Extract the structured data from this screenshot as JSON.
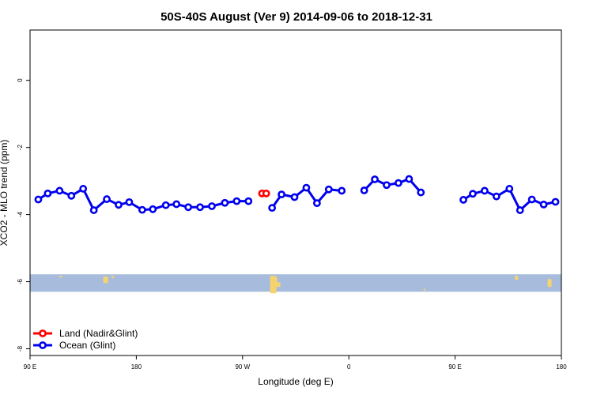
{
  "chart_data": {
    "type": "line",
    "title": "50S-40S August (Ver 9)   2014-09-06 to 2018-12-31",
    "xlabel": "Longitude (deg E)",
    "ylabel": "XCO2 - MLO trend (ppm)",
    "xlim": [
      90,
      540
    ],
    "ylim": [
      -8.2,
      1.5
    ],
    "x_ticks": [
      {
        "value": 90,
        "label": "90 E"
      },
      {
        "value": 180,
        "label": "180"
      },
      {
        "value": 270,
        "label": "90 W"
      },
      {
        "value": 360,
        "label": "0"
      },
      {
        "value": 450,
        "label": "90 E"
      },
      {
        "value": 540,
        "label": "180"
      }
    ],
    "y_ticks": [
      {
        "value": 0,
        "label": "0"
      },
      {
        "value": -2,
        "label": "-2"
      },
      {
        "value": -4,
        "label": "-4"
      },
      {
        "value": -6,
        "label": "-6"
      },
      {
        "value": -8,
        "label": "-8"
      }
    ],
    "grid": false,
    "legend_position": "bottom-left",
    "map_band": {
      "y_top": -5.78,
      "y_bottom": -6.3,
      "ocean_color": "#a7bcdd",
      "land_color": "#f5d36e"
    },
    "series": [
      {
        "name": "Land (Nadir&Glint)",
        "color": "#ff0000",
        "segments": [
          [
            [
              286.5,
              -3.37
            ],
            [
              290,
              -3.37
            ]
          ]
        ]
      },
      {
        "name": "Ocean (Glint)",
        "color": "#0000ee",
        "segments": [
          [
            [
              97,
              -3.55
            ],
            [
              105,
              -3.37
            ],
            [
              115,
              -3.29
            ],
            [
              125,
              -3.44
            ],
            [
              135,
              -3.23
            ],
            [
              144,
              -3.87
            ],
            [
              155,
              -3.54
            ],
            [
              165,
              -3.71
            ],
            [
              174,
              -3.63
            ],
            [
              185,
              -3.86
            ],
            [
              194,
              -3.84
            ],
            [
              205,
              -3.72
            ],
            [
              214,
              -3.69
            ],
            [
              224,
              -3.78
            ],
            [
              234,
              -3.78
            ],
            [
              244,
              -3.75
            ],
            [
              255,
              -3.65
            ],
            [
              265,
              -3.6
            ],
            [
              275,
              -3.6
            ]
          ],
          [
            [
              295,
              -3.8
            ],
            [
              303,
              -3.4
            ],
            [
              314,
              -3.48
            ],
            [
              324,
              -3.2
            ],
            [
              333,
              -3.66
            ],
            [
              343,
              -3.25
            ],
            [
              354,
              -3.29
            ]
          ],
          [
            [
              373,
              -3.28
            ],
            [
              382,
              -2.95
            ],
            [
              392,
              -3.12
            ],
            [
              402,
              -3.06
            ],
            [
              411,
              -2.94
            ],
            [
              421,
              -3.34
            ]
          ],
          [
            [
              457,
              -3.56
            ],
            [
              465,
              -3.38
            ],
            [
              475,
              -3.29
            ],
            [
              485,
              -3.46
            ],
            [
              496,
              -3.23
            ],
            [
              505,
              -3.87
            ],
            [
              515,
              -3.55
            ],
            [
              525,
              -3.7
            ],
            [
              535,
              -3.62
            ]
          ]
        ]
      }
    ]
  }
}
